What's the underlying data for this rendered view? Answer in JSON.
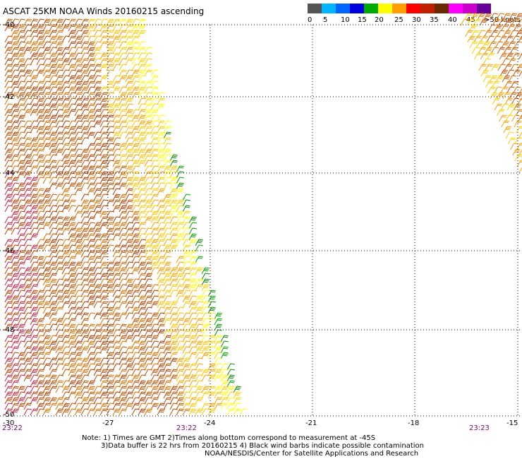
{
  "title": "ASCAT 25KM NOAA Winds 20160215 ascending",
  "legend": {
    "labels": [
      "0",
      "5",
      "10",
      "15",
      "20",
      "25",
      "30",
      "35",
      "40",
      "45",
      ">50 knots"
    ],
    "colors": [
      "#555555",
      "#00b4ff",
      "#0066ff",
      "#0000dd",
      "#00aa00",
      "#ffff00",
      "#ffa000",
      "#ff0000",
      "#c02000",
      "#6a2a00",
      "#ff00ff",
      "#cc00cc",
      "#660099"
    ]
  },
  "axes": {
    "x_ticks": [
      "-30",
      "-27",
      "-24",
      "-21",
      "-18",
      "-15"
    ],
    "y_ticks": [
      "-40",
      "-42",
      "-44",
      "-46",
      "-48",
      "-50"
    ]
  },
  "times": [
    "23:22",
    "23:22",
    "23:23"
  ],
  "notes": {
    "line1": "Note: 1) Times are GMT 2)Times along bottom correspond to measurement at -45S",
    "line2": "3)Data buffer is 22 hrs from 20160215 4) Black wind barbs indicate possible contamination",
    "line3": "NOAA/NESDIS/Center for Satellite Applications and Research"
  }
}
